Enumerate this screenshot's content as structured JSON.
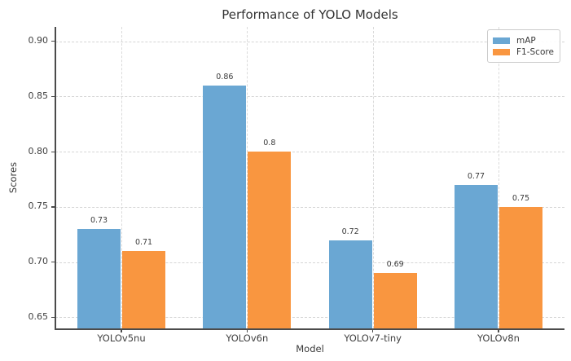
{
  "chart_data": {
    "type": "bar",
    "title": "Performance of YOLO Models",
    "xlabel": "Model",
    "ylabel": "Scores",
    "categories": [
      "YOLOv5nu",
      "YOLOv6n",
      "YOLOv7-tiny",
      "YOLOv8n"
    ],
    "series": [
      {
        "name": "mAP",
        "color": "#6aa7d3",
        "values": [
          0.73,
          0.86,
          0.72,
          0.77
        ],
        "labels": [
          "0.73",
          "0.86",
          "0.72",
          "0.77"
        ]
      },
      {
        "name": "F1-Score",
        "color": "#f99640",
        "values": [
          0.71,
          0.8,
          0.69,
          0.75
        ],
        "labels": [
          "0.71",
          "0.8",
          "0.69",
          "0.75"
        ]
      }
    ],
    "yticks": [
      0.65,
      0.7,
      0.75,
      0.8,
      0.85,
      0.9
    ],
    "ytick_labels": [
      "0.65",
      "0.70",
      "0.75",
      "0.80",
      "0.85",
      "0.90"
    ],
    "ylim": [
      0.64,
      0.913
    ],
    "grid": "both-dashed",
    "legend_position": "upper-right",
    "colors": {
      "spine": "#4b4b4b",
      "grid": "#d5d5d5",
      "text": "#3a3a3a"
    }
  }
}
